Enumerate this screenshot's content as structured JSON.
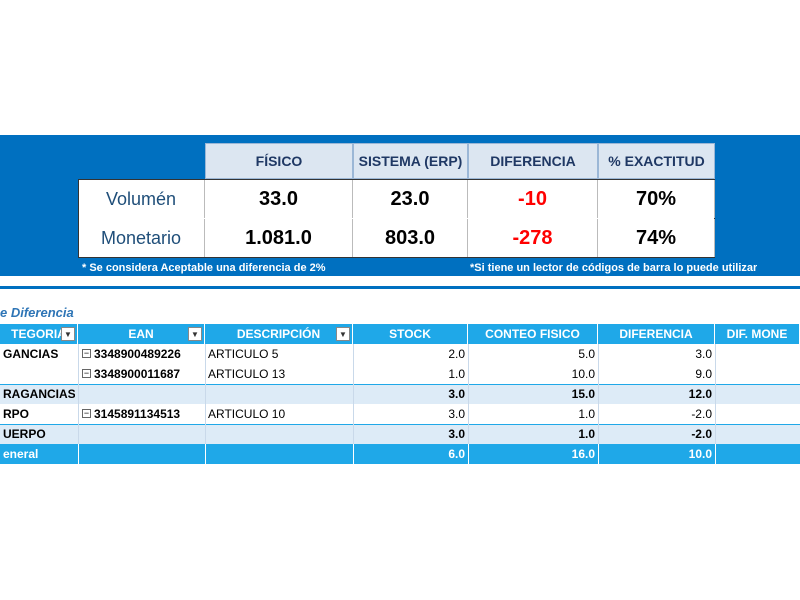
{
  "summary": {
    "headers": [
      "FÍSICO",
      "SISTEMA (ERP)",
      "DIFERENCIA",
      "% EXACTITUD"
    ],
    "rows": [
      [
        "Volumén",
        "33.0",
        "23.0",
        "-10",
        "70%"
      ],
      [
        "Monetario",
        "1.081.0",
        "803.0",
        "-278",
        "74%"
      ]
    ],
    "notes": [
      "* Se considera Aceptable una diferencia de 2%",
      "*Si tiene un lector de códigos de barra lo puede utilizar"
    ]
  },
  "pivot": {
    "title": "e Diferencia",
    "headers": [
      "TEGORIA",
      "EAN",
      "DESCRIPCIÓN",
      "STOCK",
      "CONTEO FISICO",
      "DIFERENCIA",
      "DIF. MONE"
    ],
    "rows": [
      [
        "GANCIAS",
        "3348900489226",
        "ARTICULO 5",
        "2.0",
        "5.0",
        "3.0",
        null
      ],
      [
        null,
        "3348900011687",
        "ARTICULO 13",
        "1.0",
        "10.0",
        "9.0",
        null
      ],
      [
        "RAGANCIAS",
        null,
        null,
        "3.0",
        "15.0",
        "12.0",
        null
      ],
      [
        "RPO",
        "3145891134513",
        "ARTICULO 10",
        "3.0",
        "1.0",
        "-2.0",
        null
      ],
      [
        "UERPO",
        null,
        null,
        "3.0",
        "1.0",
        "-2.0",
        null
      ],
      [
        "eneral",
        null,
        null,
        "6.0",
        "16.0",
        "10.0",
        null
      ]
    ]
  }
}
